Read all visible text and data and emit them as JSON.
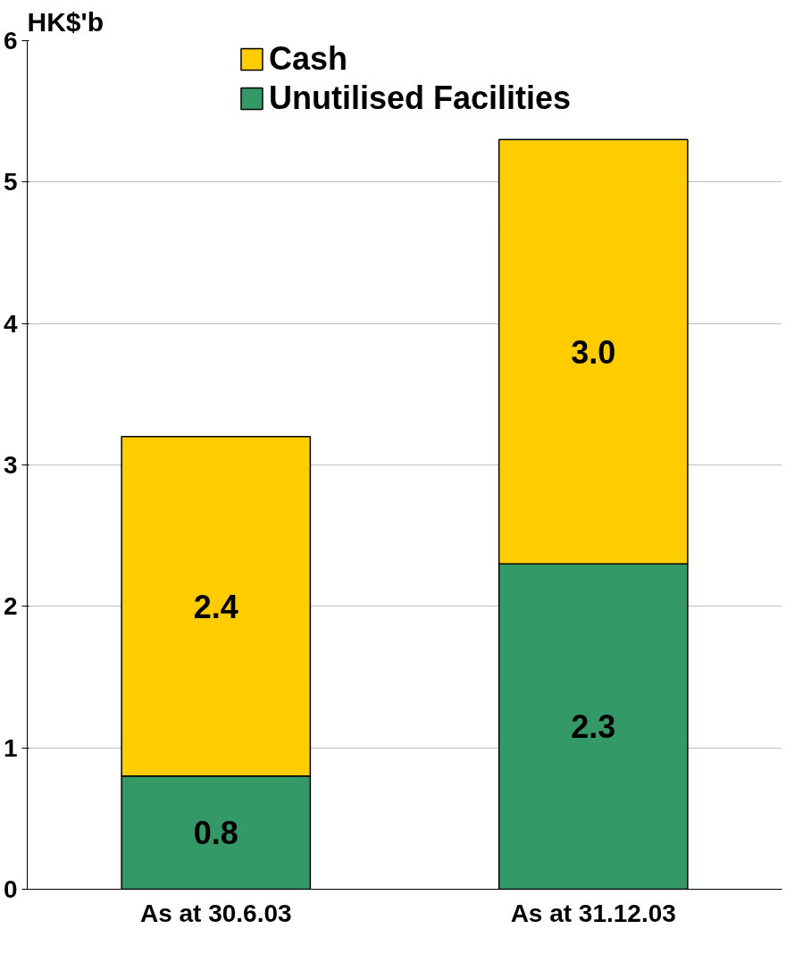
{
  "chart_data": {
    "type": "bar",
    "stacked": true,
    "ylabel": "HK$'b",
    "categories": [
      "As at 30.6.03",
      "As at 31.12.03"
    ],
    "series": [
      {
        "name": "Unutilised Facilities",
        "color": "#339966",
        "values": [
          0.8,
          2.3
        ],
        "value_labels": [
          "0.8",
          "2.3"
        ]
      },
      {
        "name": "Cash",
        "color": "#ffcc00",
        "values": [
          2.4,
          3.0
        ],
        "value_labels": [
          "2.4",
          "3.0"
        ]
      }
    ],
    "ylim": [
      0,
      6
    ],
    "yticks": [
      0,
      1,
      2,
      3,
      4,
      5,
      6
    ],
    "grid": "y",
    "legend": "top"
  }
}
